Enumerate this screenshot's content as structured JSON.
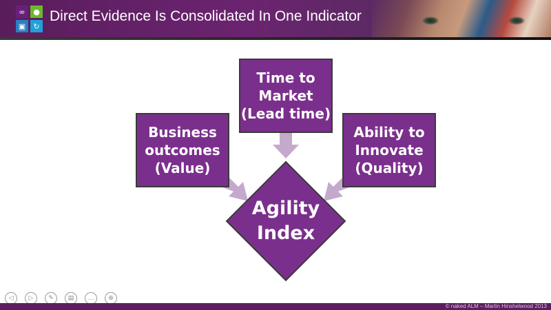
{
  "header": {
    "title": "Direct Evidence Is Consolidated In One Indicator",
    "logo_icons": [
      "visual-studio-icon",
      "team-icon",
      "package-icon",
      "refresh-icon"
    ]
  },
  "diagram": {
    "box_left": "Business\noutcomes\n(Value)",
    "box_top": "Time to\nMarket\n(Lead time)",
    "box_right": "Ability to\nInnovate\n(Quality)",
    "center": "Agility\nIndex",
    "colors": {
      "box_fill": "#7b2f8c",
      "diamond_fill": "#7b2f8c",
      "arrow_fill": "#c4a9cc",
      "border": "#3a3a3a"
    }
  },
  "nav": {
    "icons": [
      "previous-icon",
      "next-icon",
      "pen-icon",
      "slides-icon",
      "more-icon",
      "zoom-icon"
    ]
  },
  "footer": {
    "text": "© naked ALM – Martin Hinshelwood 2013"
  }
}
